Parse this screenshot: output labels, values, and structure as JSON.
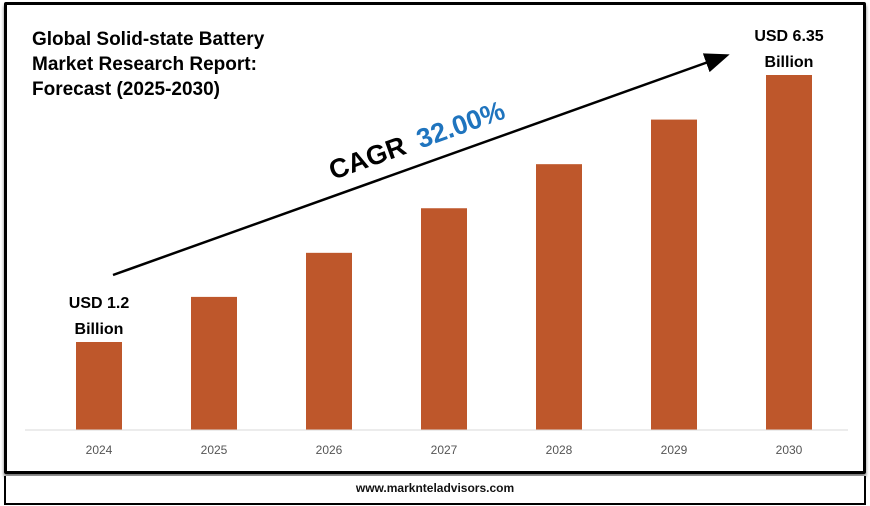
{
  "chart_data": {
    "type": "bar",
    "title": "Global Solid-state Battery Market Research Report: Forecast (2025-2030)",
    "title_lines": [
      "Global Solid-state Battery",
      "Market Research Report:",
      "Forecast (2025-2030)"
    ],
    "categories": [
      "2024",
      "2025",
      "2026",
      "2027",
      "2028",
      "2029",
      "2030"
    ],
    "values": [
      1.2,
      2.07,
      2.92,
      3.78,
      4.63,
      5.49,
      6.35
    ],
    "unit": "USD Billion",
    "start_label": [
      "USD 1.2",
      "Billion"
    ],
    "end_label": [
      "USD 6.35",
      "Billion"
    ],
    "cagr_prefix": "CAGR",
    "cagr_value": "32.00%",
    "bar_color": "#BE572B",
    "cagr_color": "#1F74BE",
    "grid": false,
    "legend": "none"
  },
  "footer": {
    "website": "www.markntel​advisors.com"
  }
}
